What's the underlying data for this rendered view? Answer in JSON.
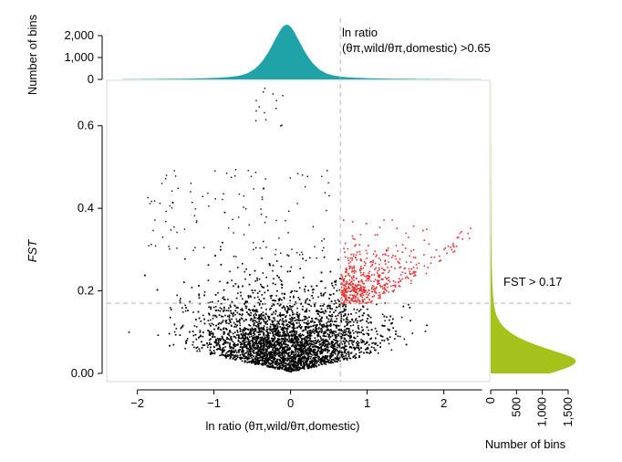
{
  "chart_data": {
    "type": "scatter",
    "title": "",
    "xlabel": "ln ratio (θπ,wild/θπ,domestic)",
    "ylabel": "FST",
    "xlim": [
      -2.4,
      2.6
    ],
    "ylim": [
      -0.02,
      0.71
    ],
    "x_ticks": [
      -2,
      -1,
      0,
      1,
      2
    ],
    "x_tick_labels": [
      "−2",
      "−1",
      "0",
      "1",
      "2"
    ],
    "y_ticks": [
      0.0,
      0.2,
      0.4,
      0.6
    ],
    "y_tick_labels": [
      "0.00",
      "0.2",
      "0.4",
      "0.6"
    ],
    "thresholds": {
      "x": 0.65,
      "y": 0.17,
      "x_label_line1": "ln ratio",
      "x_label_line2": "(θπ,wild/θπ,domestic) >0.65",
      "y_label": "FST > 0.17"
    },
    "colors": {
      "background_points": "#000000",
      "selected_points": "#e8312f",
      "top_histogram": "#1fa3a8",
      "right_histogram": "#a5c21c",
      "threshold_line": "#b5b5b5"
    },
    "top_histogram": {
      "ylabel": "Number of bins",
      "y_ticks": [
        0,
        1000,
        2000
      ],
      "y_tick_labels": [
        "0",
        "1,000",
        "2,000"
      ],
      "peak": 2500,
      "peak_x": -0.05
    },
    "right_histogram": {
      "xlabel": "Number of bins",
      "x_ticks": [
        0,
        500,
        1000,
        1500
      ],
      "x_tick_labels": [
        "0",
        "500",
        "1,000",
        "1,500"
      ],
      "peak": 1650,
      "peak_y": 0.03
    }
  }
}
